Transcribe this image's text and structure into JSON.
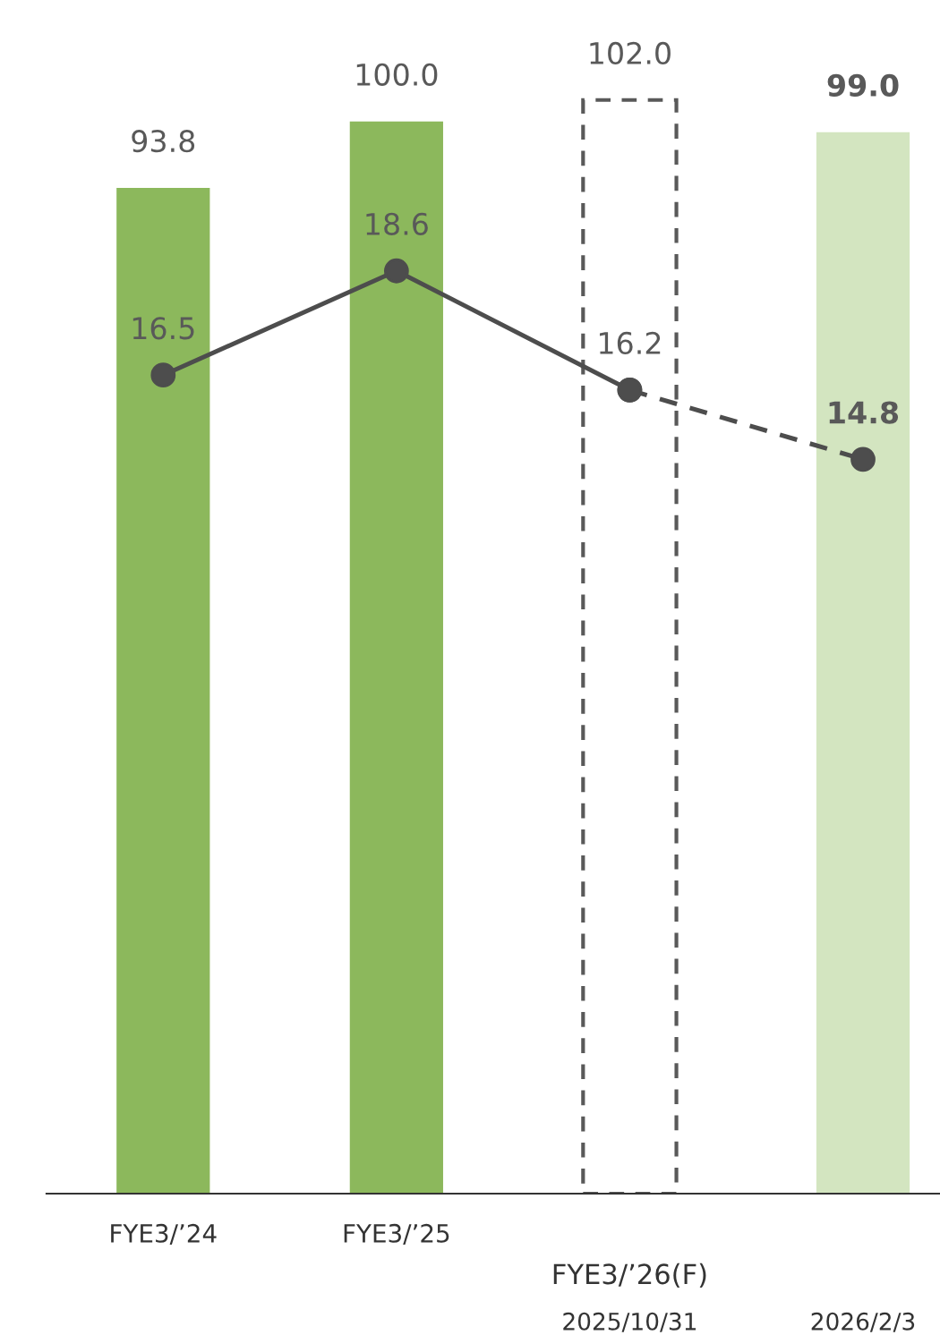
{
  "chart_data": {
    "type": "bar",
    "categories": [
      "FYE3/’24",
      "FYE3/’25",
      "2025/10/31",
      "2026/2/3"
    ],
    "series": [
      {
        "colors": [
          "#8cb85c",
          "#8cb85c",
          null,
          "#d3e5c0"
        ],
        "values": [
          93.8,
          100.0,
          null,
          99.0
        ],
        "value_labels": [
          "93.8",
          "100.0",
          null,
          "99.0"
        ]
      },
      {
        "color": "#595959",
        "line_style": "dashed",
        "values": [
          null,
          null,
          102.0,
          null
        ],
        "value_labels": [
          null,
          null,
          "102.0",
          null
        ]
      },
      {
        "type": "line",
        "axis": "y2",
        "color": "#4d4d4d",
        "marker": "circle",
        "line_style": "solid",
        "values": [
          16.5,
          18.6,
          16.2,
          null
        ],
        "value_labels": [
          "16.5",
          "18.6",
          "16.2",
          null
        ]
      },
      {
        "type": "line",
        "axis": "y2",
        "color": "#4d4d4d",
        "marker": "circle",
        "line_style": "dashed",
        "values": [
          null,
          null,
          16.2,
          14.8
        ],
        "value_labels": [
          null,
          null,
          null,
          "14.8"
        ]
      }
    ],
    "annotations": [
      "FYE3/’26(F)"
    ],
    "tick_labels": "x",
    "grid": false,
    "legend": false
  }
}
